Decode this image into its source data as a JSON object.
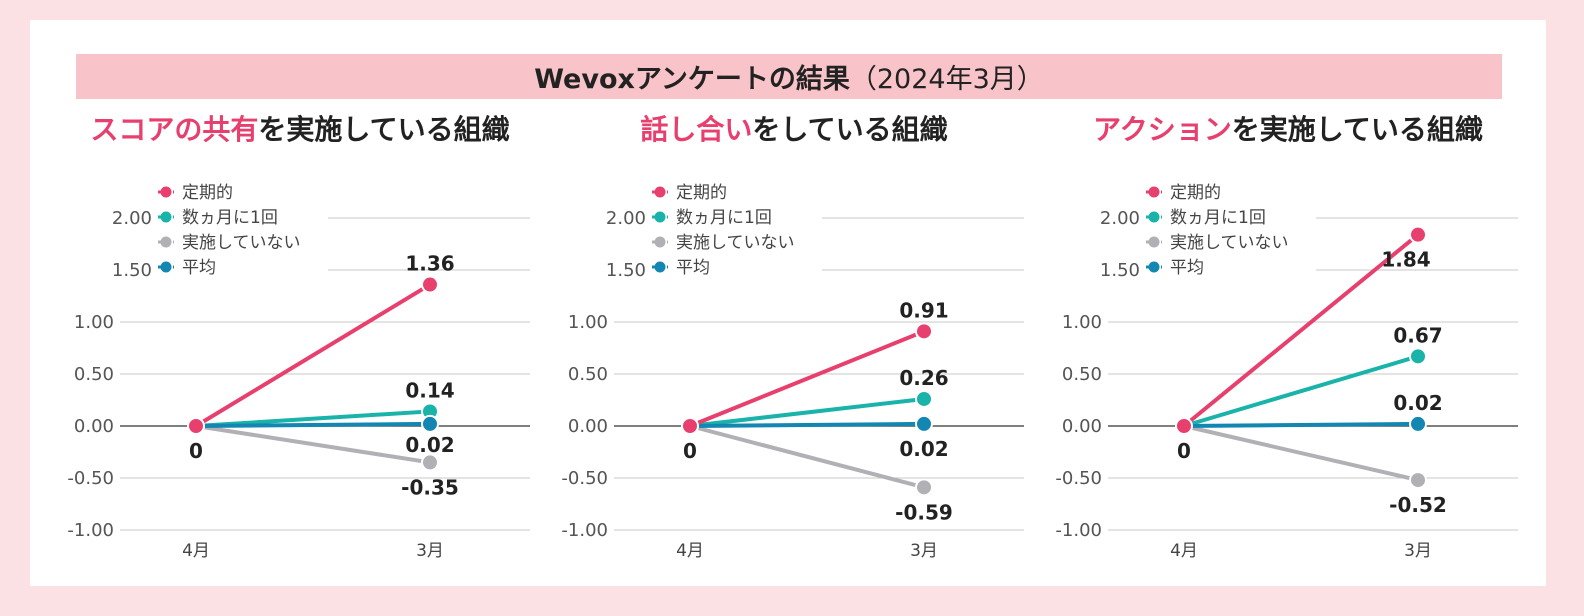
{
  "banner": {
    "title_bold": "Wevoxアンケートの結果",
    "title_rest": "（2024年3月）"
  },
  "colors": {
    "regular": "#e8406e",
    "months": "#19b3aa",
    "none": "#b1b1b5",
    "average": "#1387b2"
  },
  "chart_data": [
    {
      "type": "line",
      "title_highlight": "スコアの共有",
      "title_rest": "を実施している組織",
      "categories": [
        "4月",
        "3月"
      ],
      "ylim": [
        -1.0,
        2.0
      ],
      "yticks": [
        "2.00",
        "1.50",
        "1.00",
        "0.50",
        "0.00",
        "-0.50",
        "-1.00"
      ],
      "series": [
        {
          "name": "定期的",
          "key": "regular",
          "values": [
            0,
            1.36
          ],
          "label": "1.36"
        },
        {
          "name": "数ヵ月に1回",
          "key": "months",
          "values": [
            0,
            0.14
          ],
          "label": "0.14"
        },
        {
          "name": "実施していない",
          "key": "none",
          "values": [
            0,
            -0.35
          ],
          "label": "-0.35"
        },
        {
          "name": "平均",
          "key": "average",
          "values": [
            0,
            0.02
          ],
          "label": "0.02"
        }
      ],
      "start_label": "0"
    },
    {
      "type": "line",
      "title_highlight": "話し合い",
      "title_rest": "をしている組織",
      "categories": [
        "4月",
        "3月"
      ],
      "ylim": [
        -1.0,
        2.0
      ],
      "yticks": [
        "2.00",
        "1.50",
        "1.00",
        "0.50",
        "0.00",
        "-0.50",
        "-1.00"
      ],
      "series": [
        {
          "name": "定期的",
          "key": "regular",
          "values": [
            0,
            0.91
          ],
          "label": "0.91"
        },
        {
          "name": "数ヵ月に1回",
          "key": "months",
          "values": [
            0,
            0.26
          ],
          "label": "0.26"
        },
        {
          "name": "実施していない",
          "key": "none",
          "values": [
            0,
            -0.59
          ],
          "label": "-0.59"
        },
        {
          "name": "平均",
          "key": "average",
          "values": [
            0,
            0.02
          ],
          "label": "0.02"
        }
      ],
      "start_label": "0"
    },
    {
      "type": "line",
      "title_highlight": "アクション",
      "title_rest": "を実施している組織",
      "categories": [
        "4月",
        "3月"
      ],
      "ylim": [
        -1.0,
        2.0
      ],
      "yticks": [
        "2.00",
        "1.50",
        "1.00",
        "0.50",
        "0.00",
        "-0.50",
        "-1.00"
      ],
      "series": [
        {
          "name": "定期的",
          "key": "regular",
          "values": [
            0,
            1.84
          ],
          "label": "1.84"
        },
        {
          "name": "数ヵ月に1回",
          "key": "months",
          "values": [
            0,
            0.67
          ],
          "label": "0.67"
        },
        {
          "name": "実施していない",
          "key": "none",
          "values": [
            0,
            -0.52
          ],
          "label": "-0.52"
        },
        {
          "name": "平均",
          "key": "average",
          "values": [
            0,
            0.02
          ],
          "label": "0.02"
        }
      ],
      "start_label": "0"
    }
  ]
}
